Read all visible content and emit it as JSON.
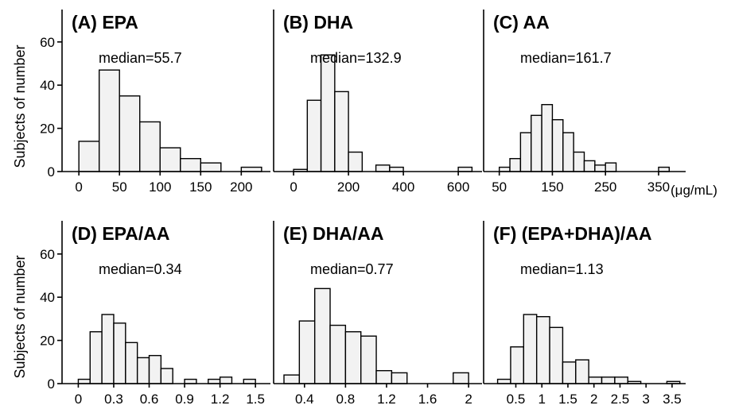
{
  "y_axis_label": "Subjects of number",
  "unit_label": "(μg/mL)",
  "chart_data": [
    {
      "type": "bar",
      "title": "(A) EPA",
      "annotation": "median=55.7",
      "ylim": [
        0,
        70
      ],
      "yticks": [
        "0",
        "20",
        "40",
        "60"
      ],
      "xlim": [
        -8,
        232
      ],
      "xticks": [
        {
          "v": 0,
          "label": "0"
        },
        {
          "v": 50,
          "label": "50"
        },
        {
          "v": 100,
          "label": "100"
        },
        {
          "v": 150,
          "label": "150"
        },
        {
          "v": 200,
          "label": "200"
        }
      ],
      "bin_width": 25,
      "bins": [
        {
          "x": 0,
          "y": 14
        },
        {
          "x": 25,
          "y": 47
        },
        {
          "x": 50,
          "y": 35
        },
        {
          "x": 75,
          "y": 23
        },
        {
          "x": 100,
          "y": 11
        },
        {
          "x": 125,
          "y": 6
        },
        {
          "x": 150,
          "y": 4
        },
        {
          "x": 175,
          "y": 0
        },
        {
          "x": 200,
          "y": 2
        }
      ]
    },
    {
      "type": "bar",
      "title": "(B) DHA",
      "annotation": "median=132.9",
      "ylim": [
        0,
        70
      ],
      "yticks": [],
      "xlim": [
        -35,
        675
      ],
      "xticks": [
        {
          "v": 0,
          "label": "0"
        },
        {
          "v": 200,
          "label": "200"
        },
        {
          "v": 400,
          "label": "400"
        },
        {
          "v": 600,
          "label": "600"
        }
      ],
      "bin_width": 50,
      "bins": [
        {
          "x": 0,
          "y": 1
        },
        {
          "x": 50,
          "y": 33
        },
        {
          "x": 100,
          "y": 54
        },
        {
          "x": 150,
          "y": 37
        },
        {
          "x": 200,
          "y": 9
        },
        {
          "x": 250,
          "y": 0
        },
        {
          "x": 300,
          "y": 3
        },
        {
          "x": 350,
          "y": 2
        },
        {
          "x": 400,
          "y": 0
        },
        {
          "x": 450,
          "y": 0
        },
        {
          "x": 500,
          "y": 0
        },
        {
          "x": 550,
          "y": 0
        },
        {
          "x": 600,
          "y": 2
        }
      ]
    },
    {
      "type": "bar",
      "title": "(C) AA",
      "annotation": "median=161.7",
      "ylim": [
        0,
        70
      ],
      "yticks": [],
      "xlim": [
        40,
        395
      ],
      "xticks": [
        {
          "v": 50,
          "label": "50"
        },
        {
          "v": 150,
          "label": "150"
        },
        {
          "v": 250,
          "label": "250"
        },
        {
          "v": 350,
          "label": "350"
        }
      ],
      "bin_width": 20,
      "bins": [
        {
          "x": 50,
          "y": 2
        },
        {
          "x": 70,
          "y": 6
        },
        {
          "x": 90,
          "y": 18
        },
        {
          "x": 110,
          "y": 26
        },
        {
          "x": 130,
          "y": 31
        },
        {
          "x": 150,
          "y": 24
        },
        {
          "x": 170,
          "y": 18
        },
        {
          "x": 190,
          "y": 9
        },
        {
          "x": 210,
          "y": 5
        },
        {
          "x": 230,
          "y": 3
        },
        {
          "x": 250,
          "y": 4
        },
        {
          "x": 270,
          "y": 0
        },
        {
          "x": 290,
          "y": 0
        },
        {
          "x": 310,
          "y": 0
        },
        {
          "x": 330,
          "y": 0
        },
        {
          "x": 350,
          "y": 2
        }
      ]
    },
    {
      "type": "bar",
      "title": "(D) EPA/AA",
      "annotation": "median=0.34",
      "ylim": [
        0,
        70
      ],
      "yticks": [
        "0",
        "20",
        "40",
        "60"
      ],
      "xlim": [
        -0.05,
        1.6
      ],
      "xticks": [
        {
          "v": 0,
          "label": "0"
        },
        {
          "v": 0.3,
          "label": "0.3"
        },
        {
          "v": 0.6,
          "label": "0.6"
        },
        {
          "v": 0.9,
          "label": "0.9"
        },
        {
          "v": 1.2,
          "label": "1.2"
        },
        {
          "v": 1.5,
          "label": "1.5"
        }
      ],
      "bin_width": 0.1,
      "bins": [
        {
          "x": 0,
          "y": 2
        },
        {
          "x": 0.1,
          "y": 24
        },
        {
          "x": 0.2,
          "y": 32
        },
        {
          "x": 0.3,
          "y": 28
        },
        {
          "x": 0.4,
          "y": 19
        },
        {
          "x": 0.5,
          "y": 12
        },
        {
          "x": 0.6,
          "y": 13
        },
        {
          "x": 0.7,
          "y": 7
        },
        {
          "x": 0.8,
          "y": 0
        },
        {
          "x": 0.9,
          "y": 2
        },
        {
          "x": 1.0,
          "y": 0
        },
        {
          "x": 1.1,
          "y": 2
        },
        {
          "x": 1.2,
          "y": 3
        },
        {
          "x": 1.3,
          "y": 0
        },
        {
          "x": 1.4,
          "y": 2
        }
      ]
    },
    {
      "type": "bar",
      "title": "(E) DHA/AA",
      "annotation": "median=0.77",
      "ylim": [
        0,
        70
      ],
      "yticks": [],
      "xlim": [
        0.2,
        2.1
      ],
      "xticks": [
        {
          "v": 0.4,
          "label": "0.4"
        },
        {
          "v": 0.8,
          "label": "0.8"
        },
        {
          "v": 1.2,
          "label": "1.2"
        },
        {
          "v": 1.6,
          "label": "1.6"
        },
        {
          "v": 2.0,
          "label": "2"
        }
      ],
      "bin_width": 0.15,
      "bins": [
        {
          "x": 0.2,
          "y": 4
        },
        {
          "x": 0.35,
          "y": 29
        },
        {
          "x": 0.5,
          "y": 44
        },
        {
          "x": 0.65,
          "y": 27
        },
        {
          "x": 0.8,
          "y": 24
        },
        {
          "x": 0.95,
          "y": 22
        },
        {
          "x": 1.1,
          "y": 6
        },
        {
          "x": 1.25,
          "y": 5
        },
        {
          "x": 1.4,
          "y": 0
        },
        {
          "x": 1.55,
          "y": 0
        },
        {
          "x": 1.7,
          "y": 0
        },
        {
          "x": 1.85,
          "y": 5
        }
      ]
    },
    {
      "type": "bar",
      "title": "(F) (EPA+DHA)/AA",
      "annotation": "median=1.13",
      "ylim": [
        0,
        70
      ],
      "yticks": [],
      "xlim": [
        0.08,
        3.7
      ],
      "xticks": [
        {
          "v": 0.5,
          "label": "0.5"
        },
        {
          "v": 1.0,
          "label": "1"
        },
        {
          "v": 1.5,
          "label": "1.5"
        },
        {
          "v": 2.0,
          "label": "2"
        },
        {
          "v": 2.5,
          "label": "2.5"
        },
        {
          "v": 3.0,
          "label": "3"
        },
        {
          "v": 3.5,
          "label": "3.5"
        }
      ],
      "bin_width": 0.25,
      "bins": [
        {
          "x": 0.15,
          "y": 2
        },
        {
          "x": 0.4,
          "y": 17
        },
        {
          "x": 0.65,
          "y": 32
        },
        {
          "x": 0.9,
          "y": 31
        },
        {
          "x": 1.15,
          "y": 26
        },
        {
          "x": 1.4,
          "y": 10
        },
        {
          "x": 1.65,
          "y": 11
        },
        {
          "x": 1.9,
          "y": 3
        },
        {
          "x": 2.15,
          "y": 3
        },
        {
          "x": 2.4,
          "y": 3
        },
        {
          "x": 2.65,
          "y": 1
        },
        {
          "x": 2.9,
          "y": 0
        },
        {
          "x": 3.15,
          "y": 0
        },
        {
          "x": 3.4,
          "y": 1
        }
      ]
    }
  ]
}
